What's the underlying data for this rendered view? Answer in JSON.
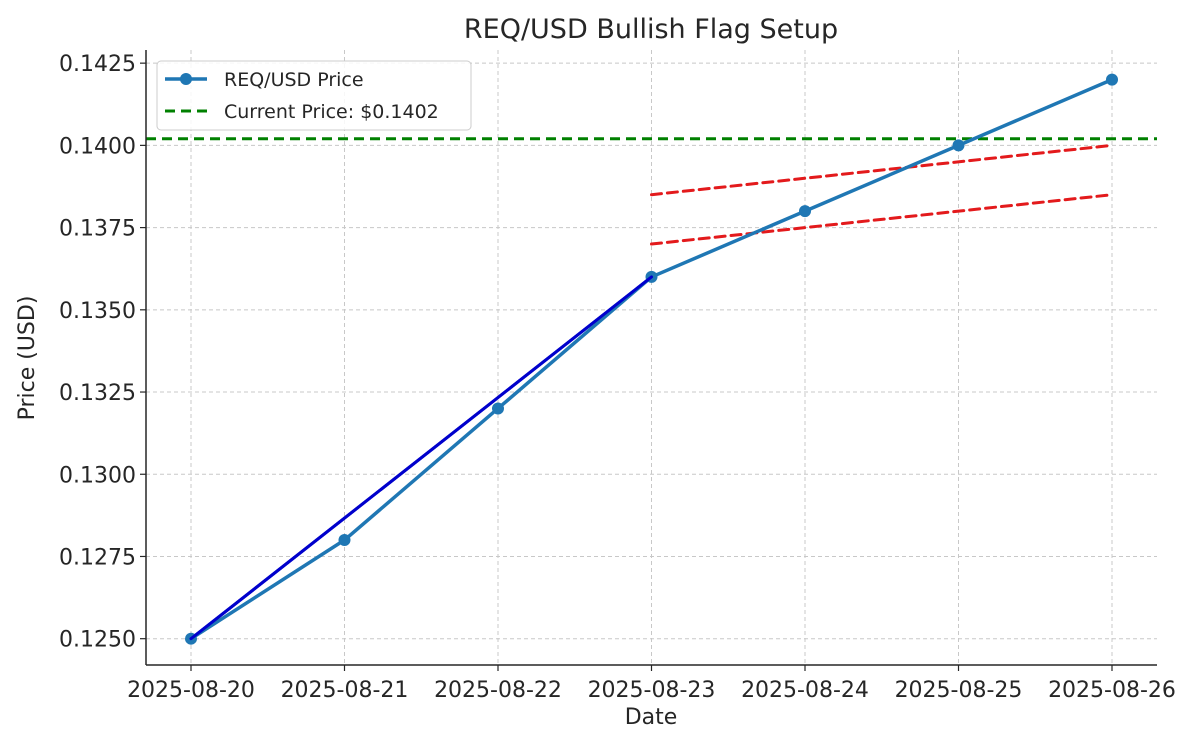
{
  "chart_data": {
    "type": "line",
    "title": "REQ/USD Bullish Flag Setup",
    "xlabel": "Date",
    "ylabel": "Price (USD)",
    "categories": [
      "2025-08-20",
      "2025-08-21",
      "2025-08-22",
      "2025-08-23",
      "2025-08-24",
      "2025-08-25",
      "2025-08-26"
    ],
    "ylim": [
      0.1242,
      0.1429
    ],
    "yticks": [
      "0.1250",
      "0.1275",
      "0.1300",
      "0.1325",
      "0.1350",
      "0.1375",
      "0.1400",
      "0.1425"
    ],
    "grid": true,
    "legend_position": "top-left",
    "series": [
      {
        "name": "REQ/USD Price",
        "values": [
          0.125,
          0.128,
          0.132,
          0.136,
          0.138,
          0.14,
          0.142
        ],
        "color": "#1f77b4",
        "style": "solid",
        "markers": true
      }
    ],
    "reference_lines": [
      {
        "name": "Current Price: $0.1402",
        "y": 0.1402,
        "color": "#008000",
        "style": "dashed"
      }
    ],
    "annotations": [
      {
        "type": "flagpole",
        "from": {
          "x": "2025-08-20",
          "y": 0.125
        },
        "to": {
          "x": "2025-08-23",
          "y": 0.136
        },
        "color": "#0000cc",
        "style": "solid"
      },
      {
        "type": "flag-upper",
        "from": {
          "x": "2025-08-23",
          "y": 0.1385
        },
        "to": {
          "x": "2025-08-26",
          "y": 0.14
        },
        "color": "#e31a1c",
        "style": "dashed"
      },
      {
        "type": "flag-lower",
        "from": {
          "x": "2025-08-23",
          "y": 0.137
        },
        "to": {
          "x": "2025-08-26",
          "y": 0.1385
        },
        "color": "#e31a1c",
        "style": "dashed"
      }
    ],
    "colors": {
      "grid": "#c8c8c8",
      "axis": "#262626",
      "legend_border": "#cccccc"
    }
  }
}
